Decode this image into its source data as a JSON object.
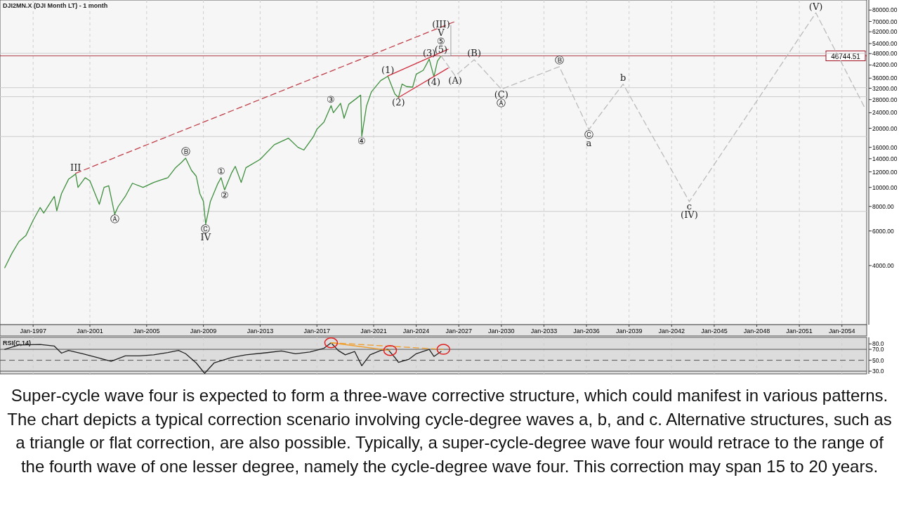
{
  "chart_data": [
    {
      "type": "line",
      "title": "DJI2MN.X (DJI Month LT) - 1 month",
      "log": "y",
      "grid": "x",
      "xlim": [
        "1994-09",
        "2055-10"
      ],
      "xticks": [
        {
          "value": "1997-01",
          "label": "Jan-1997"
        },
        {
          "value": "2001-01",
          "label": "Jan-2001"
        },
        {
          "value": "2005-01",
          "label": "Jan-2005"
        },
        {
          "value": "2009-01",
          "label": "Jan-2009"
        },
        {
          "value": "2013-01",
          "label": "Jan-2013"
        },
        {
          "value": "2017-01",
          "label": "Jan-2017"
        },
        {
          "value": "2021-01",
          "label": "Jan-2021"
        },
        {
          "value": "2024-01",
          "label": "Jan-2024"
        },
        {
          "value": "2027-01",
          "label": "Jan-2027"
        },
        {
          "value": "2030-01",
          "label": "Jan-2030"
        },
        {
          "value": "2033-01",
          "label": "Jan-2033"
        },
        {
          "value": "2036-01",
          "label": "Jan-2036"
        },
        {
          "value": "2039-01",
          "label": "Jan-2039"
        },
        {
          "value": "2042-01",
          "label": "Jan-2042"
        },
        {
          "value": "2045-01",
          "label": "Jan-2045"
        },
        {
          "value": "2048-01",
          "label": "Jan-2048"
        },
        {
          "value": "2051-01",
          "label": "Jan-2051"
        },
        {
          "value": "2054-01",
          "label": "Jan-2054"
        }
      ],
      "ylim": [
        2000,
        90000
      ],
      "yticks": [
        {
          "value": 4000,
          "label": "4000.00"
        },
        {
          "value": 6000,
          "label": "6000.00"
        },
        {
          "value": 8000,
          "label": "8000.00"
        },
        {
          "value": 10000,
          "label": "10000.00"
        },
        {
          "value": 12000,
          "label": "12000.00"
        },
        {
          "value": 14000,
          "label": "14000.00"
        },
        {
          "value": 16000,
          "label": "16000.00"
        },
        {
          "value": 20000,
          "label": "20000.00"
        },
        {
          "value": 24000,
          "label": "24000.00"
        },
        {
          "value": 28000,
          "label": "28000.00"
        },
        {
          "value": 32000,
          "label": "32000.00"
        },
        {
          "value": 36000,
          "label": "36000.00"
        },
        {
          "value": 42000,
          "label": "42000.00"
        },
        {
          "value": 48000,
          "label": "48000.00"
        },
        {
          "value": 54000,
          "label": "54000.00"
        },
        {
          "value": 62000,
          "label": "62000.00"
        },
        {
          "value": 70000,
          "label": "70000.00"
        },
        {
          "value": 80000,
          "label": "80000.00"
        }
      ],
      "series": [
        {
          "color": "#3f8f3f",
          "x": [
            "1995-01",
            "1995-07",
            "1996-01",
            "1996-07",
            "1997-01",
            "1997-07",
            "1997-10",
            "1998-07",
            "1998-09",
            "1999-01",
            "1999-07",
            "2000-01",
            "2000-03",
            "2000-09",
            "2001-01",
            "2001-09",
            "2002-01",
            "2002-05",
            "2002-10",
            "2003-01",
            "2003-07",
            "2004-01",
            "2004-10",
            "2005-07",
            "2006-01",
            "2006-07",
            "2007-01",
            "2007-07",
            "2007-10",
            "2008-03",
            "2008-07",
            "2008-10",
            "2009-01",
            "2009-03",
            "2009-07",
            "2010-01",
            "2010-04",
            "2010-07",
            "2011-01",
            "2011-04",
            "2011-09",
            "2012-01",
            "2013-01",
            "2014-01",
            "2015-01",
            "2015-09",
            "2016-02",
            "2016-10",
            "2017-01",
            "2017-07",
            "2018-01",
            "2018-03",
            "2018-09",
            "2018-12",
            "2019-04",
            "2020-02",
            "2020-03",
            "2020-07",
            "2020-11",
            "2021-07",
            "2022-01",
            "2022-07",
            "2022-10",
            "2023-01",
            "2023-05",
            "2023-10",
            "2024-01",
            "2024-07",
            "2024-12",
            "2025-04",
            "2025-07",
            "2025-10"
          ],
          "values": [
            3900,
            4600,
            5300,
            5700,
            6800,
            7900,
            7400,
            9000,
            7600,
            9300,
            11000,
            11700,
            10000,
            11200,
            10800,
            8200,
            10000,
            10200,
            7300,
            8000,
            9000,
            10500,
            10000,
            10600,
            10900,
            11200,
            12500,
            13500,
            14100,
            12200,
            11400,
            9300,
            8500,
            6500,
            8500,
            10400,
            11200,
            9700,
            11900,
            12800,
            10600,
            12600,
            13900,
            16500,
            17800,
            16000,
            15500,
            18100,
            19800,
            21500,
            26100,
            24000,
            26800,
            22500,
            26500,
            29500,
            18200,
            26000,
            30600,
            35000,
            36800,
            29900,
            28700,
            33600,
            32600,
            32400,
            37700,
            39500,
            45000,
            36600,
            44000,
            46700
          ]
        },
        {
          "color": "#bbbbbb",
          "line_style": "dashed",
          "x": [
            "2025-10",
            "2026-10",
            "2028-02",
            "2030-01",
            "2034-02",
            "2036-03",
            "2038-08",
            "2043-04",
            "2052-03",
            "2055-09"
          ],
          "values": [
            46700,
            37000,
            44700,
            31600,
            41200,
            19700,
            33600,
            8470,
            77400,
            25000
          ]
        },
        {
          "color": "#c0404a",
          "line_style": "dashed",
          "x": [
            "2000-01",
            "2026-10"
          ],
          "values": [
            11800,
            70000
          ]
        },
        {
          "color": "#d03040",
          "x": [
            "2022-01",
            "2026-04"
          ],
          "values": [
            36900,
            50500
          ]
        },
        {
          "color": "#d03040",
          "x": [
            "2022-10",
            "2026-04"
          ],
          "values": [
            28700,
            40500
          ]
        }
      ],
      "ref_lines": [
        {
          "axis": "y",
          "value": 46744.51,
          "label": "46744.51",
          "color": "#a01020"
        },
        {
          "axis": "y",
          "value": 48150,
          "color": "#cccccc"
        },
        {
          "axis": "y",
          "value": 32200,
          "color": "#cccccc"
        },
        {
          "axis": "y",
          "value": 28970,
          "color": "#cccccc"
        },
        {
          "axis": "y",
          "value": 18160,
          "color": "#cccccc"
        },
        {
          "axis": "y",
          "value": 7550,
          "color": "#cccccc"
        }
      ],
      "annotations": [
        {
          "text": "III",
          "x": "2000-01",
          "y": 11700
        },
        {
          "text": "Ⓐ",
          "x": "2002-10",
          "y": 7300
        },
        {
          "text": "Ⓑ",
          "x": "2007-10",
          "y": 14100
        },
        {
          "text": "Ⓒ",
          "x": "2009-03",
          "y": 6500
        },
        {
          "text": "IV",
          "x": "2009-03",
          "y": 6500
        },
        {
          "text": "①",
          "x": "2010-04",
          "y": 11200
        },
        {
          "text": "②",
          "x": "2010-07",
          "y": 9700
        },
        {
          "text": "③",
          "x": "2018-01",
          "y": 26100
        },
        {
          "text": "④",
          "x": "2020-03",
          "y": 18200
        },
        {
          "text": "(1)",
          "x": "2022-01",
          "y": 36800
        },
        {
          "text": "(2)",
          "x": "2022-10",
          "y": 28700
        },
        {
          "text": "(3)",
          "x": "2024-12",
          "y": 45000
        },
        {
          "text": "(4)",
          "x": "2025-04",
          "y": 36600
        },
        {
          "text": "(5)",
          "x": "2025-10",
          "y": 46700
        },
        {
          "text": "⑤",
          "x": "2025-10",
          "y": 46700
        },
        {
          "text": "V",
          "x": "2025-10",
          "y": 46700
        },
        {
          "text": "(III)",
          "x": "2025-10",
          "y": 46700
        },
        {
          "text": "(A)",
          "x": "2026-10",
          "y": 37000
        },
        {
          "text": "(B)",
          "x": "2028-02",
          "y": 44700
        },
        {
          "text": "(C)",
          "x": "2030-01",
          "y": 31600
        },
        {
          "text": "Ⓐ",
          "x": "2030-01",
          "y": 31600
        },
        {
          "text": "Ⓑ",
          "x": "2034-02",
          "y": 41200
        },
        {
          "text": "Ⓒ",
          "x": "2036-03",
          "y": 19700
        },
        {
          "text": "a",
          "x": "2036-03",
          "y": 19700
        },
        {
          "text": "b",
          "x": "2038-08",
          "y": 33600
        },
        {
          "text": "c",
          "x": "2043-04",
          "y": 8470
        },
        {
          "text": "(IV)",
          "x": "2043-04",
          "y": 8470
        },
        {
          "text": "(V)",
          "x": "2052-03",
          "y": 77400
        },
        "Super-cycle wave four is expected to form a three-wave corrective structure, which could manifest in various patterns. The chart depicts a typical correction scenario involving cycle-degree waves a, b, and c. Alternative structures, such as a triangle or flat correction, are also possible. Typically, a super-cycle-degree wave four would retrace to the range of the fourth wave of one lesser degree, namely the cycle-degree wave four. This correction may span 15 to 20 years."
      ]
    },
    {
      "type": "line",
      "title": "RSI(C,14)",
      "grid": "x",
      "tick_labels": "y",
      "xlim": [
        "1994-09",
        "2055-10"
      ],
      "ylim": [
        25,
        92
      ],
      "yticks": [
        {
          "value": 30,
          "label": "30.0"
        },
        {
          "value": 50,
          "label": "50.0"
        },
        {
          "value": 70,
          "label": "70.0"
        },
        {
          "value": 80,
          "label": "80.0"
        }
      ],
      "series": [
        {
          "color": "#222222",
          "x": [
            "1995-01",
            "1996-01",
            "1997-07",
            "1998-07",
            "1999-01",
            "1999-07",
            "2000-07",
            "2001-07",
            "2002-07",
            "2003-07",
            "2004-07",
            "2005-07",
            "2006-07",
            "2007-04",
            "2007-10",
            "2008-07",
            "2009-02",
            "2009-10",
            "2011-01",
            "2012-01",
            "2013-07",
            "2014-07",
            "2015-07",
            "2016-07",
            "2017-07",
            "2018-01",
            "2018-07",
            "2019-01",
            "2019-09",
            "2020-03",
            "2020-10",
            "2021-07",
            "2022-01",
            "2022-07",
            "2022-10",
            "2023-07",
            "2024-01",
            "2024-12",
            "2025-04",
            "2025-10"
          ],
          "values": [
            70,
            78,
            79,
            76,
            63,
            68,
            62,
            55,
            48,
            58,
            58,
            60,
            64,
            68,
            62,
            45,
            26,
            45,
            55,
            60,
            64,
            67,
            62,
            65,
            72,
            82,
            68,
            60,
            66,
            40,
            60,
            68,
            70,
            55,
            46,
            52,
            62,
            70,
            57,
            66
          ]
        },
        {
          "color": "#f0a030",
          "x": [
            "2018-01",
            "2022-03"
          ],
          "values": [
            82,
            68
          ]
        },
        {
          "color": "#f0a030",
          "line_style": "dashed",
          "x": [
            "2018-01",
            "2025-12"
          ],
          "values": [
            82,
            70
          ]
        }
      ],
      "ref_lines": [
        {
          "axis": "y",
          "value": 70,
          "color": "#555555"
        },
        {
          "axis": "y",
          "value": 50,
          "color": "#555555",
          "line_style": "dashed"
        },
        {
          "axis": "y",
          "value": 30,
          "color": "#555555"
        }
      ]
    }
  ]
}
